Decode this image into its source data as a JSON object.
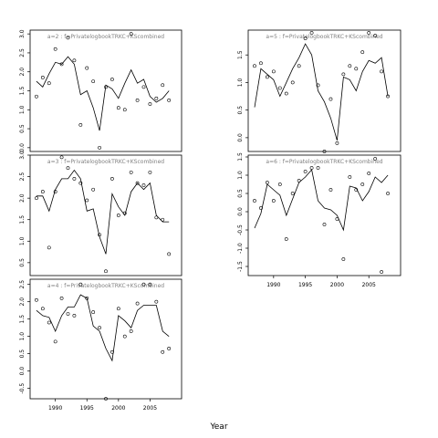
{
  "figure": {
    "xlabel": "Year"
  },
  "chart_data": [
    {
      "type": "scatter+line",
      "title": "a=2  :  f=PrivatelogbookTRKC+KScombined",
      "xlim": [
        1986,
        2010
      ],
      "ylim": [
        -0.1,
        3.1
      ],
      "yticks": [
        "0.0",
        "0.5",
        "1.0",
        "1.5",
        "2.0",
        "2.5",
        "3.0"
      ],
      "ytick_values": [
        0,
        0.5,
        1,
        1.5,
        2,
        2.5,
        3
      ],
      "xticks": [],
      "xtick_values": [],
      "points_x": [
        1987,
        1988,
        1989,
        1990,
        1991,
        1992,
        1993,
        1994,
        1995,
        1996,
        1997,
        1998,
        1999,
        2000,
        2001,
        2002,
        2003,
        2004,
        2005,
        2006,
        2007,
        2008
      ],
      "points_y": [
        1.35,
        1.85,
        1.7,
        2.6,
        2.2,
        2.9,
        2.3,
        0.6,
        2.1,
        1.75,
        0.0,
        1.6,
        1.8,
        1.05,
        1.0,
        3.0,
        1.25,
        1.6,
        1.15,
        1.3,
        1.65,
        1.25
      ],
      "line_x": [
        1987,
        1988,
        1989,
        1990,
        1991,
        1992,
        1993,
        1994,
        1995,
        1996,
        1997,
        1998,
        1999,
        2000,
        2001,
        2002,
        2003,
        2004,
        2005,
        2006,
        2007,
        2008
      ],
      "line_y": [
        1.75,
        1.6,
        1.95,
        2.25,
        2.2,
        2.4,
        2.2,
        1.4,
        1.5,
        1.05,
        0.45,
        1.65,
        1.55,
        1.3,
        1.7,
        2.05,
        1.7,
        1.8,
        1.35,
        1.2,
        1.3,
        1.5
      ]
    },
    {
      "type": "scatter+line",
      "title": "a=3  :  f=PrivatelogbookTRKC+KScombined",
      "xlim": [
        1986,
        2010
      ],
      "ylim": [
        0.2,
        3.0
      ],
      "yticks": [
        "0.5",
        "1.0",
        "1.5",
        "2.0",
        "2.5",
        "3.0"
      ],
      "ytick_values": [
        0.5,
        1,
        1.5,
        2,
        2.5,
        3
      ],
      "xticks": [],
      "xtick_values": [],
      "points_x": [
        1987,
        1988,
        1989,
        1990,
        1991,
        1992,
        1993,
        1994,
        1995,
        1996,
        1997,
        1998,
        1999,
        2000,
        2001,
        2002,
        2003,
        2004,
        2005,
        2006,
        2007,
        2008
      ],
      "points_y": [
        2.0,
        2.15,
        0.85,
        2.15,
        2.95,
        2.7,
        2.45,
        2.35,
        1.95,
        2.2,
        1.15,
        0.3,
        2.45,
        1.6,
        1.65,
        2.6,
        2.35,
        2.3,
        2.6,
        1.55,
        1.5,
        0.7
      ],
      "line_x": [
        1987,
        1988,
        1989,
        1990,
        1991,
        1992,
        1993,
        1994,
        1995,
        1996,
        1997,
        1998,
        1999,
        2000,
        2001,
        2002,
        2003,
        2004,
        2005,
        2006,
        2007,
        2008
      ],
      "line_y": [
        2.05,
        2.05,
        1.7,
        2.2,
        2.45,
        2.45,
        2.65,
        2.45,
        1.7,
        1.75,
        1.1,
        0.7,
        2.1,
        1.8,
        1.6,
        2.15,
        2.35,
        2.2,
        2.35,
        1.6,
        1.45,
        1.45
      ]
    },
    {
      "type": "scatter+line",
      "title": "a=4  :  f=PrivatelogbookTRKC+KScombined",
      "xlim": [
        1986,
        2010
      ],
      "ylim": [
        -0.8,
        2.65
      ],
      "yticks": [
        "-0.5",
        "0.0",
        "0.5",
        "1.0",
        "1.5",
        "2.0",
        "2.5"
      ],
      "ytick_values": [
        -0.5,
        0,
        0.5,
        1,
        1.5,
        2,
        2.5
      ],
      "xticks": [
        "1990",
        "1995",
        "2000",
        "2005"
      ],
      "xtick_values": [
        1990,
        1995,
        2000,
        2005
      ],
      "points_x": [
        1987,
        1988,
        1989,
        1990,
        1991,
        1992,
        1993,
        1994,
        1995,
        1996,
        1997,
        1998,
        1999,
        2000,
        2001,
        2002,
        2003,
        2004,
        2005,
        2006,
        2007,
        2008
      ],
      "points_y": [
        2.05,
        1.8,
        1.4,
        0.85,
        2.1,
        1.65,
        1.6,
        2.5,
        2.1,
        1.7,
        1.25,
        -0.8,
        0.55,
        1.8,
        1.0,
        1.15,
        1.95,
        2.5,
        2.5,
        2.0,
        0.55,
        0.65
      ],
      "line_x": [
        1987,
        1988,
        1989,
        1990,
        1991,
        1992,
        1993,
        1994,
        1995,
        1996,
        1997,
        1998,
        1999,
        2000,
        2001,
        2002,
        2003,
        2004,
        2005,
        2006,
        2007,
        2008
      ],
      "line_y": [
        1.75,
        1.6,
        1.55,
        1.15,
        1.6,
        1.85,
        1.85,
        2.2,
        2.1,
        1.3,
        1.15,
        0.65,
        0.3,
        1.6,
        1.45,
        1.25,
        1.75,
        1.9,
        1.9,
        1.9,
        1.15,
        1.0
      ]
    },
    {
      "type": "scatter+line",
      "title": "a=5  :  f=PrivatelogbookTRKC+KScombined",
      "xlim": [
        1986,
        2010
      ],
      "ylim": [
        -0.25,
        1.95
      ],
      "yticks": [
        "0.0",
        "0.5",
        "1.0",
        "1.5"
      ],
      "ytick_values": [
        0,
        0.5,
        1,
        1.5
      ],
      "xticks": [],
      "xtick_values": [],
      "points_x": [
        1987,
        1988,
        1989,
        1990,
        1991,
        1992,
        1993,
        1994,
        1995,
        1996,
        1997,
        1998,
        1999,
        2000,
        2001,
        2002,
        2003,
        2004,
        2005,
        2006,
        2007,
        2008
      ],
      "points_y": [
        1.3,
        1.35,
        1.1,
        1.2,
        0.9,
        0.8,
        1.0,
        1.3,
        1.8,
        1.9,
        0.95,
        -0.25,
        0.7,
        -0.1,
        1.15,
        1.3,
        1.25,
        1.55,
        1.9,
        1.85,
        1.2,
        0.75
      ],
      "line_x": [
        1987,
        1988,
        1989,
        1990,
        1991,
        1992,
        1993,
        1994,
        1995,
        1996,
        1997,
        1998,
        1999,
        2000,
        2001,
        2002,
        2003,
        2004,
        2005,
        2006,
        2007,
        2008
      ],
      "line_y": [
        0.55,
        1.25,
        1.15,
        1.05,
        0.75,
        1.0,
        1.25,
        1.45,
        1.7,
        1.5,
        0.85,
        0.65,
        0.35,
        -0.05,
        1.1,
        1.05,
        0.85,
        1.2,
        1.4,
        1.35,
        1.45,
        0.75
      ]
    },
    {
      "type": "scatter+line",
      "title": "a=6  :  f=PrivatelogbookTRKC+KScombined",
      "xlim": [
        1986,
        2010
      ],
      "ylim": [
        -1.75,
        1.55
      ],
      "yticks": [
        "-1.5",
        "-1.0",
        "-0.5",
        "0.0",
        "0.5",
        "1.0",
        "1.5"
      ],
      "ytick_values": [
        -1.5,
        -1,
        -0.5,
        0,
        0.5,
        1,
        1.5
      ],
      "xticks": [
        "1990",
        "1995",
        "2000",
        "2005"
      ],
      "xtick_values": [
        1990,
        1995,
        2000,
        2005
      ],
      "points_x": [
        1987,
        1988,
        1989,
        1990,
        1991,
        1992,
        1993,
        1994,
        1995,
        1996,
        1997,
        1998,
        1999,
        2000,
        2001,
        2002,
        2003,
        2004,
        2005,
        2006,
        2007,
        2008
      ],
      "points_y": [
        0.3,
        0.1,
        0.8,
        0.3,
        0.75,
        -0.75,
        0.5,
        0.85,
        1.1,
        1.2,
        1.2,
        -0.35,
        0.6,
        -0.2,
        -1.3,
        0.95,
        0.6,
        0.75,
        1.05,
        1.45,
        -1.65,
        0.5
      ],
      "line_x": [
        1987,
        1988,
        1989,
        1990,
        1991,
        1992,
        1993,
        1994,
        1995,
        1996,
        1997,
        1998,
        1999,
        2000,
        2001,
        2002,
        2003,
        2004,
        2005,
        2006,
        2007,
        2008
      ],
      "line_y": [
        -0.45,
        -0.05,
        0.75,
        0.6,
        0.45,
        -0.1,
        0.35,
        0.8,
        0.95,
        1.15,
        0.3,
        0.1,
        0.05,
        -0.1,
        -0.5,
        0.7,
        0.65,
        0.3,
        0.55,
        0.95,
        0.8,
        1.0
      ]
    }
  ]
}
